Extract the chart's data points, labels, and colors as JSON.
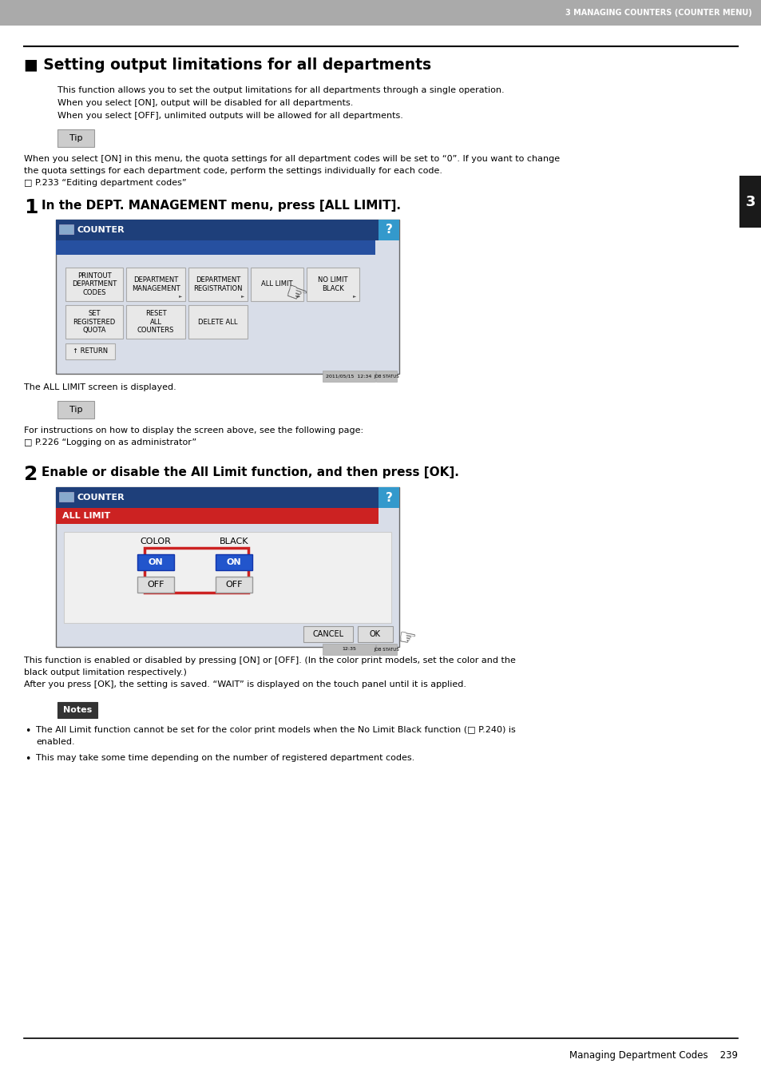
{
  "page_bg": "#ffffff",
  "header_bg": "#aaaaaa",
  "header_text": "3 MANAGING COUNTERS (COUNTER MENU)",
  "header_text_color": "#ffffff",
  "tab_bg": "#1a1a1a",
  "tab_text": "3",
  "tab_text_color": "#ffffff",
  "section_title": "■ Setting output limitations for all departments",
  "intro_lines": [
    "This function allows you to set the output limitations for all departments through a single operation.",
    "When you select [ON], output will be disabled for all departments.",
    "When you select [OFF], unlimited outputs will be allowed for all departments."
  ],
  "tip_box1_label": "Tip",
  "tip_box1_lines": [
    "When you select [ON] in this menu, the quota settings for all department codes will be set to “0”. If you want to change",
    "the quota settings for each department code, perform the settings individually for each code.",
    "□ P.233 “Editing department codes”"
  ],
  "step1_num": "1",
  "step1_text": "In the DEPT. MANAGEMENT menu, press [ALL LIMIT].",
  "step1_caption": "The ALL LIMIT screen is displayed.",
  "tip_box2_label": "Tip",
  "tip_box2_lines": [
    "For instructions on how to display the screen above, see the following page:",
    "□ P.226 “Logging on as administrator”"
  ],
  "step2_num": "2",
  "step2_text": "Enable or disable the All Limit function, and then press [OK].",
  "step2_captions": [
    "This function is enabled or disabled by pressing [ON] or [OFF]. (In the color print models, set the color and the",
    "black output limitation respectively.)",
    "After you press [OK], the setting is saved. “WAIT” is displayed on the touch panel until it is applied."
  ],
  "notes_label": "Notes",
  "note1_lines": [
    "The All Limit function cannot be set for the color print models when the No Limit Black function (□ P.240) is",
    "enabled."
  ],
  "note2": "This may take some time depending on the number of registered department codes.",
  "footer_text": "Managing Department Codes    239",
  "screen1_header_bg": "#1e3f7a",
  "screen1_header_bg2": "#2650a0",
  "screen1_body_bg": "#d8dde8",
  "screen1_btn_bg": "#e8e8e8",
  "screen1_btn_border": "#aaaaaa",
  "screen2_header_bg": "#1e3f7a",
  "screen2_subbar_bg": "#cc2222",
  "screen2_body_bg": "#d8dde8",
  "qmark_bg": "#3399cc"
}
